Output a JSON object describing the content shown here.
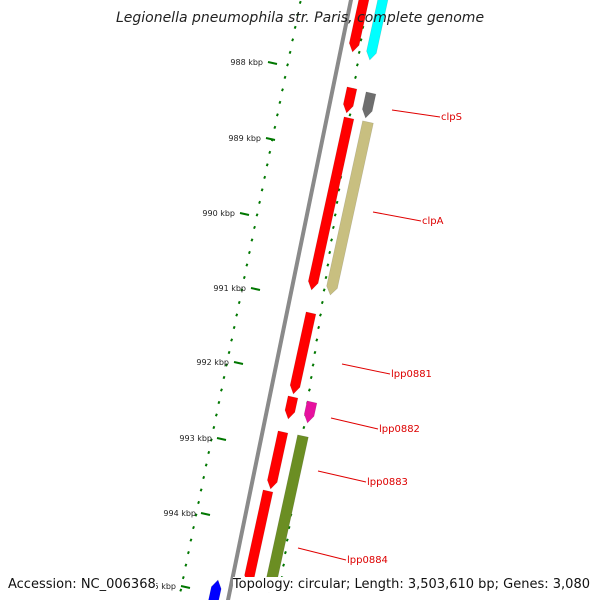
{
  "title": "Legionella pneumophila str. Paris, complete genome",
  "accession": "Accession: NC_006368",
  "topology": "Topology: circular; Length: 3,503,610 bp; Genes: 3,080",
  "ticks": [
    {
      "label": "988 kbp"
    },
    {
      "label": "989 kbp"
    },
    {
      "label": "990 kbp"
    },
    {
      "label": "991 kbp"
    },
    {
      "label": "992 kbp"
    },
    {
      "label": "993 kbp"
    },
    {
      "label": "994 kbp"
    },
    {
      "label": "995 kbp"
    }
  ],
  "genes": [
    {
      "name": "clpS",
      "color": "#e00000"
    },
    {
      "name": "clpA",
      "color": "#e00000"
    },
    {
      "name": "lpp0881",
      "color": "#e00000"
    },
    {
      "name": "lpp0882",
      "color": "#e00000"
    },
    {
      "name": "lpp0883",
      "color": "#e00000"
    },
    {
      "name": "lpp0884",
      "color": "#e00000"
    }
  ],
  "colors": {
    "backbone": "#8a8a8a",
    "ticks": "#007700",
    "gene_forward": "#ff0000",
    "cog_cyan": "#00ffff",
    "cog_gray": "#6e6e6e",
    "cog_khaki": "#c8bf80",
    "cog_magenta": "#e6119e",
    "cog_olive": "#6b8e23",
    "cog_blue": "#0000ff",
    "label": "#dd0000"
  }
}
